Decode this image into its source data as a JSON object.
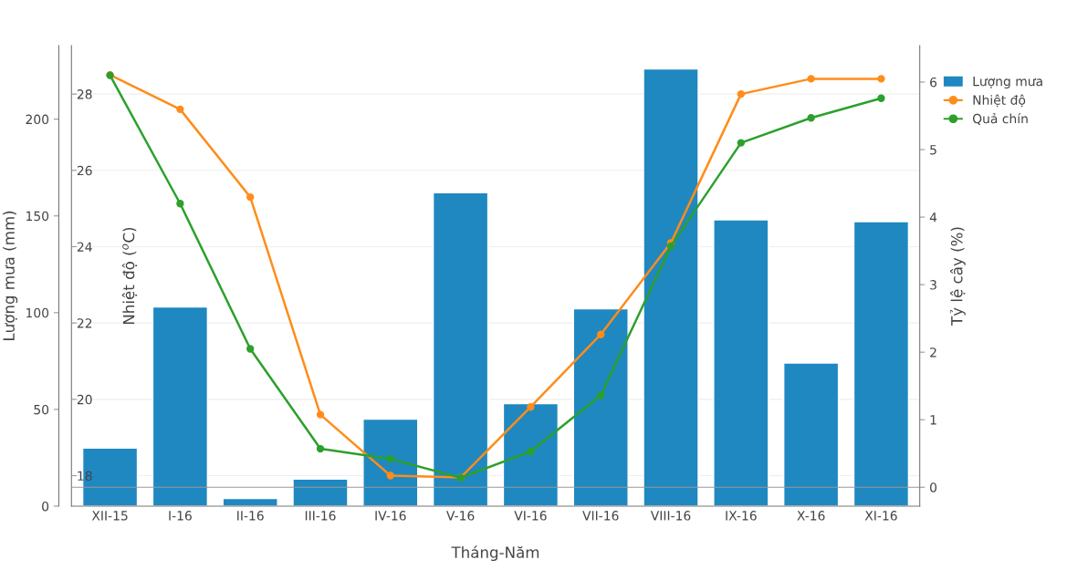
{
  "chart_data": {
    "type": "bar",
    "xlabel": "Tháng-Năm",
    "ylabel": "Lượng mưa (mm)",
    "y2label": "Nhiệt độ ($^{o}$C)",
    "y3label": "Tỷ lệ cây (%)",
    "categories": [
      "XII-15",
      "I-16",
      "II-16",
      "III-16",
      "IV-16",
      "V-16",
      "VI-16",
      "VII-16",
      "VIII-16",
      "IX-16",
      "X-16",
      "XI-16"
    ],
    "series": [
      {
        "name": "Lượng mưa",
        "color": "#1f88c0",
        "values": [
          30,
          103,
          4,
          14,
          45,
          162,
          53,
          102,
          226,
          148,
          74,
          147
        ]
      },
      {
        "name": "Nhiệt độ",
        "type": "line",
        "axis": "y2",
        "color": "#ff8c1a",
        "values": [
          28.5,
          27.6,
          25.3,
          19.6,
          18.0,
          17.95,
          19.8,
          21.7,
          24.1,
          28.0,
          28.4,
          28.4
        ]
      },
      {
        "name": "Quả chín",
        "type": "line",
        "axis": "y3",
        "color": "#2ca02c",
        "values": [
          6.1,
          4.2,
          2.05,
          0.57,
          0.42,
          0.14,
          0.53,
          1.36,
          3.57,
          5.1,
          5.47,
          5.76
        ]
      }
    ],
    "ylim": [
      0,
      238
    ],
    "yticks": [
      0,
      50,
      100,
      150,
      200
    ],
    "y2lim": [
      17.2,
      29.27
    ],
    "y2ticks": [
      18,
      20,
      22,
      24,
      26,
      28
    ],
    "y3lim": [
      -0.28,
      6.54
    ],
    "y3ticks": [
      0,
      1,
      2,
      3,
      4,
      5,
      6
    ],
    "ref_lines": [
      {
        "axis": "y3",
        "value": 0,
        "color": "#999999"
      }
    ],
    "grid": "y2",
    "marker": "circle",
    "line_style": "solid",
    "legend": "top right"
  }
}
